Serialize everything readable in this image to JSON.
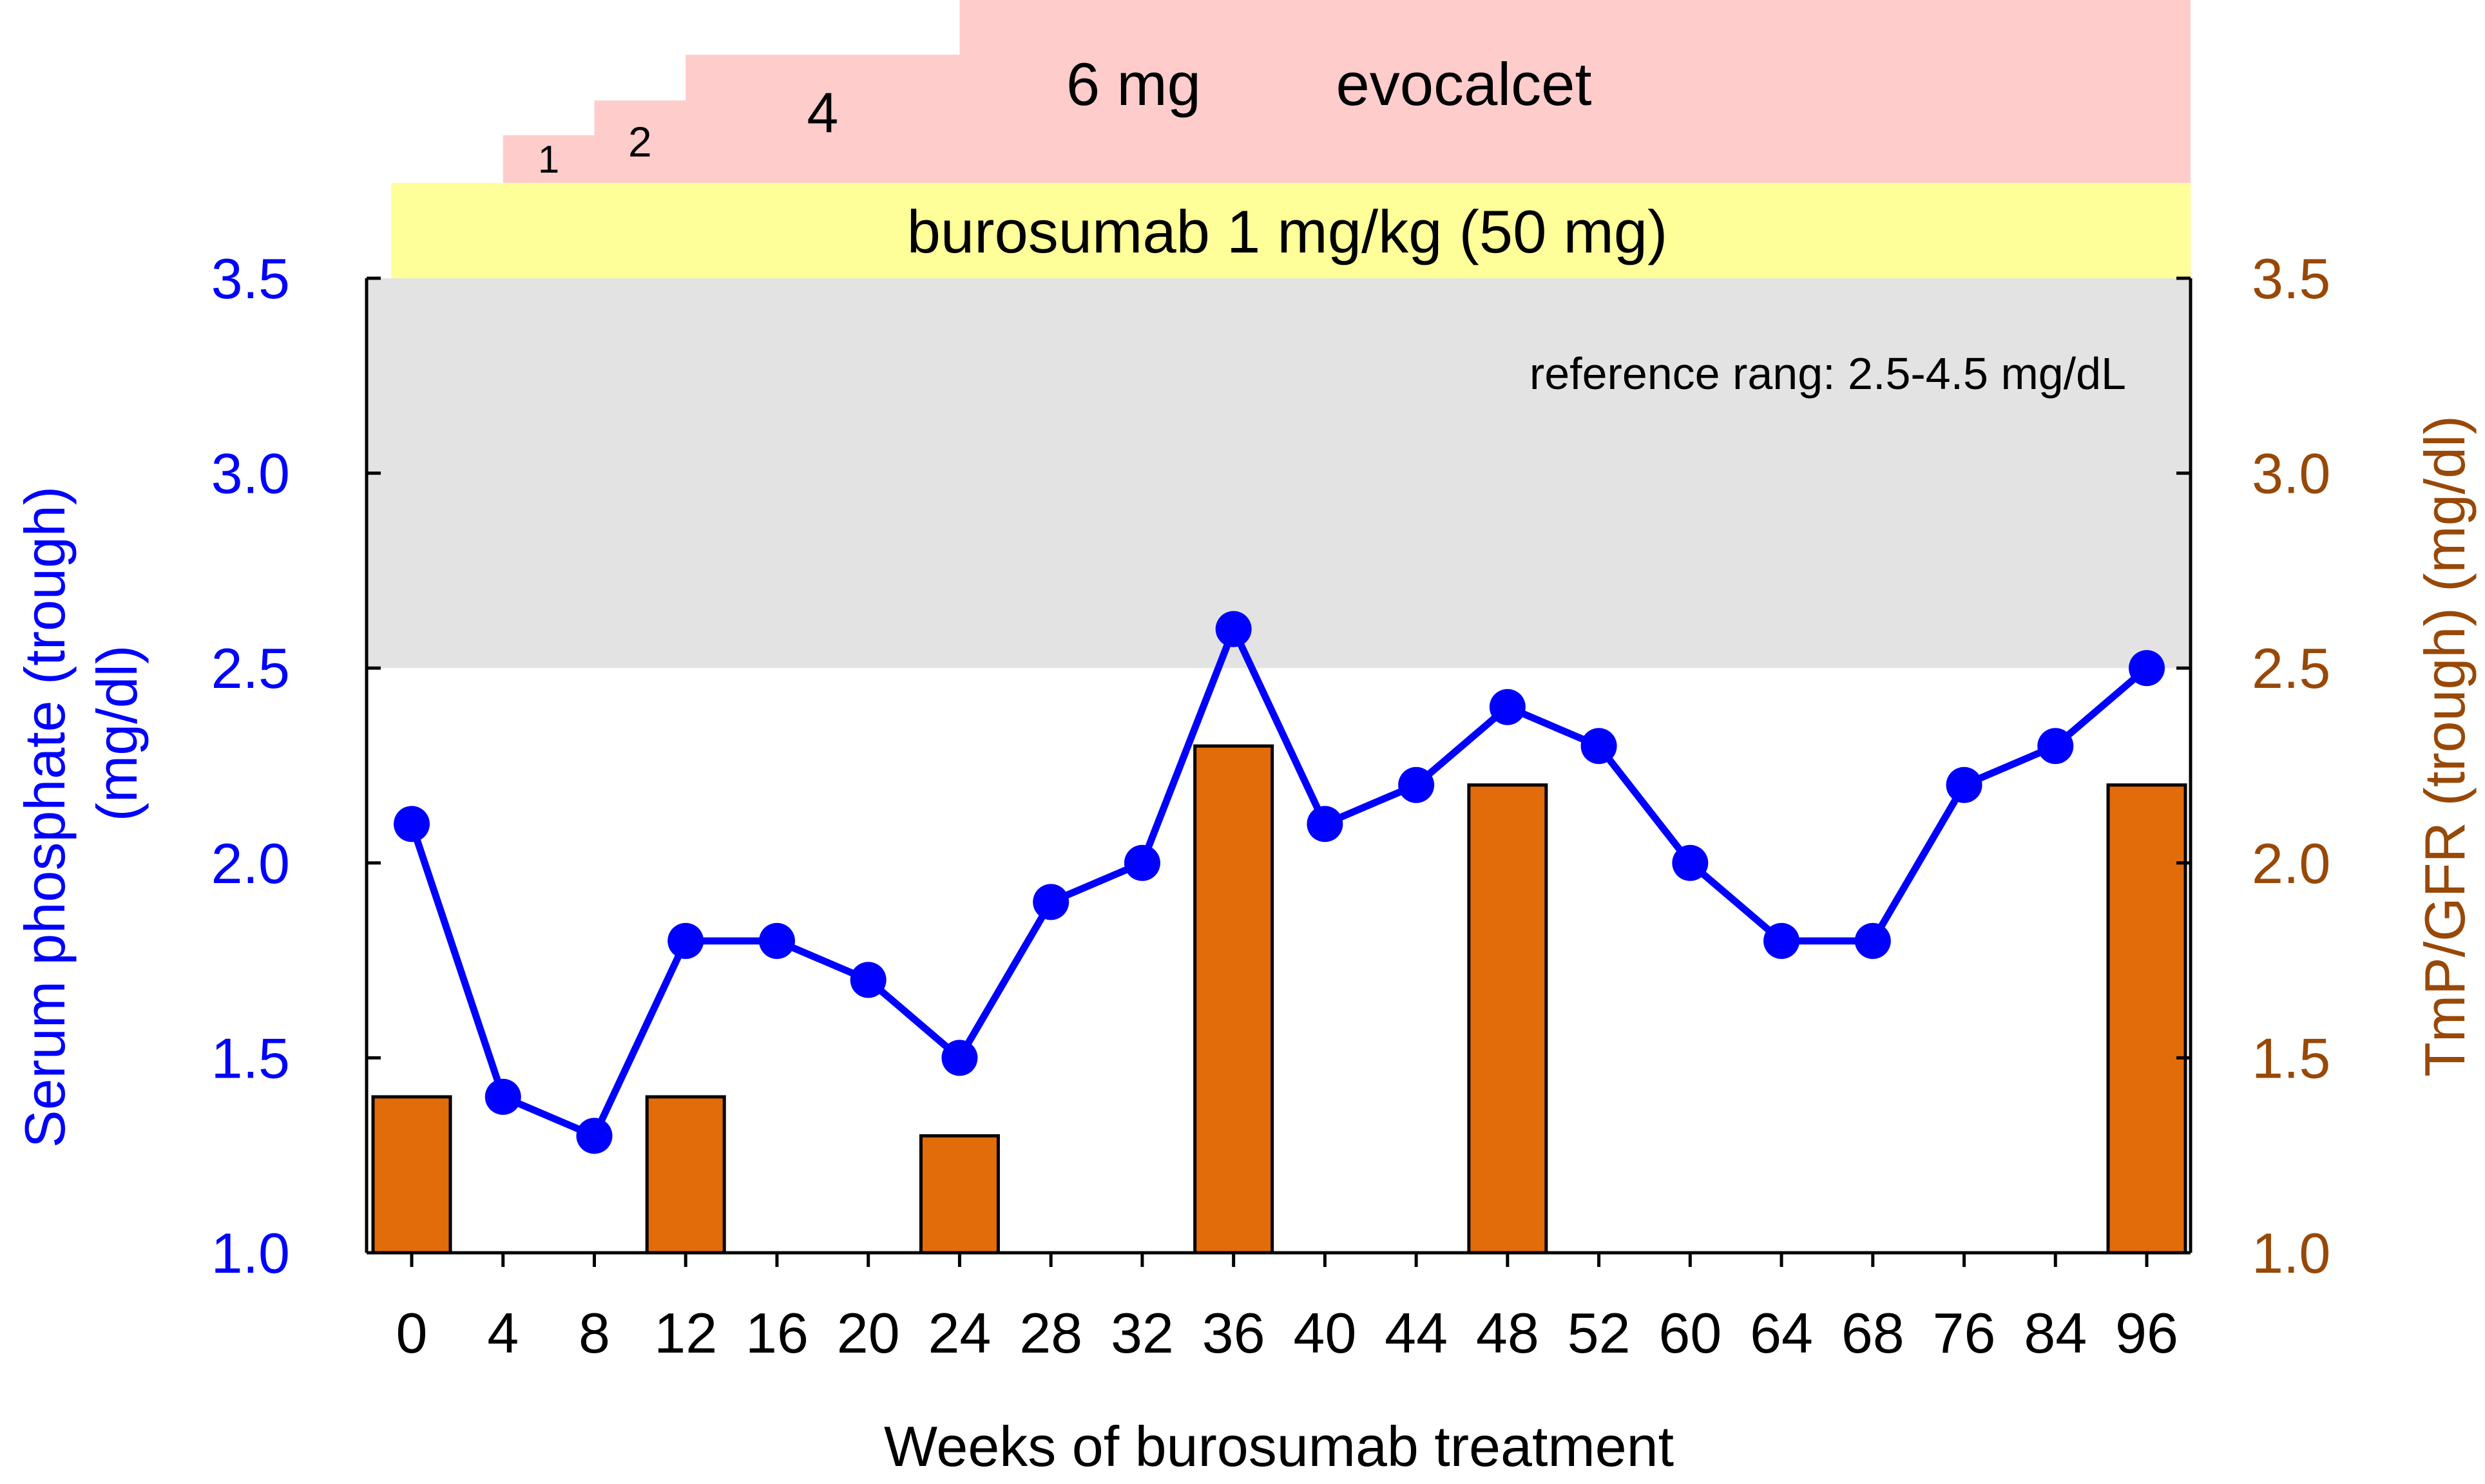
{
  "chart_data": {
    "type": "bar+line",
    "title": "",
    "xlabel": "Weeks of burosumab treatment",
    "ylabel_left": [
      "Serum phosphate (trough)",
      "(mg/dl)"
    ],
    "ylabel_right": "TmP/GFR (trough) (mg/dl)",
    "categories": [
      "0",
      "4",
      "8",
      "12",
      "16",
      "20",
      "24",
      "28",
      "32",
      "36",
      "40",
      "44",
      "48",
      "52",
      "60",
      "64",
      "68",
      "76",
      "84",
      "96"
    ],
    "ylim": [
      1.0,
      3.5
    ],
    "yticks": [
      "1.0",
      "1.5",
      "2.0",
      "2.5",
      "3.0",
      "3.5"
    ],
    "y2lim": [
      1.0,
      3.5
    ],
    "y2ticks": [
      "1.0",
      "1.5",
      "2.0",
      "2.5",
      "3.0",
      "3.5"
    ],
    "series": [
      {
        "type": "line",
        "axis": "left",
        "color": "#0000ff",
        "values": [
          2.1,
          1.4,
          1.3,
          1.8,
          1.8,
          1.7,
          1.5,
          1.9,
          2.0,
          2.6,
          2.1,
          2.2,
          2.4,
          2.3,
          2.0,
          1.8,
          1.8,
          2.2,
          2.3,
          2.5
        ]
      },
      {
        "type": "bar",
        "axis": "right",
        "color": "#e26b0a",
        "values": [
          1.4,
          null,
          null,
          1.4,
          null,
          null,
          1.3,
          null,
          null,
          2.3,
          null,
          null,
          2.2,
          null,
          null,
          null,
          null,
          null,
          null,
          2.2
        ]
      }
    ],
    "reference_band": {
      "from": 2.5,
      "to": 3.5,
      "label": "reference rang: 2.5-4.5 mg/dL",
      "color": "#e3e3e3"
    },
    "annotations": {
      "burosumab": {
        "label": "burosumab 1 mg/kg (50 mg)",
        "color": "#ffff99"
      },
      "evocalcet": {
        "label": "evocalcet",
        "color": "#ffcccc",
        "steps": [
          {
            "start_week": "4",
            "label": "1"
          },
          {
            "start_week": "8",
            "label": "2"
          },
          {
            "start_week": "12",
            "label": "4"
          },
          {
            "start_week": "24",
            "label": "6 mg"
          }
        ]
      }
    },
    "colors": {
      "left_axis": "#0000ff",
      "right_axis": "#984807",
      "axes": "#000000"
    }
  }
}
